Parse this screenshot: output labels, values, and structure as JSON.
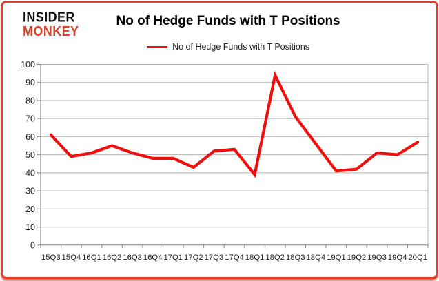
{
  "logo": {
    "line1": "INSIDER",
    "line2": "MONKEY"
  },
  "title": "No of Hedge Funds with T Positions",
  "legend": {
    "label": "No of Hedge Funds with T Positions"
  },
  "colors": {
    "line": "#f20d0d",
    "frame": "#e83b28",
    "logo_black": "#111111",
    "logo_red": "#d8432c",
    "grid": "#b3b3b3",
    "axis": "#808080",
    "tick_text": "#1a1a1a"
  },
  "chart_data": {
    "type": "line",
    "title": "No of Hedge Funds with T Positions",
    "categories": [
      "15Q3",
      "15Q4",
      "16Q1",
      "16Q2",
      "16Q3",
      "16Q4",
      "17Q1",
      "17Q2",
      "17Q3",
      "17Q4",
      "18Q1",
      "18Q2",
      "18Q3",
      "18Q4",
      "19Q1",
      "19Q2",
      "19Q3",
      "19Q4",
      "20Q1"
    ],
    "series": [
      {
        "name": "No of Hedge Funds with T Positions",
        "values": [
          61,
          49,
          51,
          55,
          51,
          48,
          48,
          43,
          52,
          53,
          39,
          94,
          71,
          56,
          41,
          42,
          51,
          50,
          57
        ]
      }
    ],
    "xlabel": "",
    "ylabel": "",
    "ylim": [
      0,
      100
    ],
    "y_ticks": [
      0,
      10,
      20,
      30,
      40,
      50,
      60,
      70,
      80,
      90,
      100
    ],
    "grid": true,
    "legend_position": "top"
  }
}
